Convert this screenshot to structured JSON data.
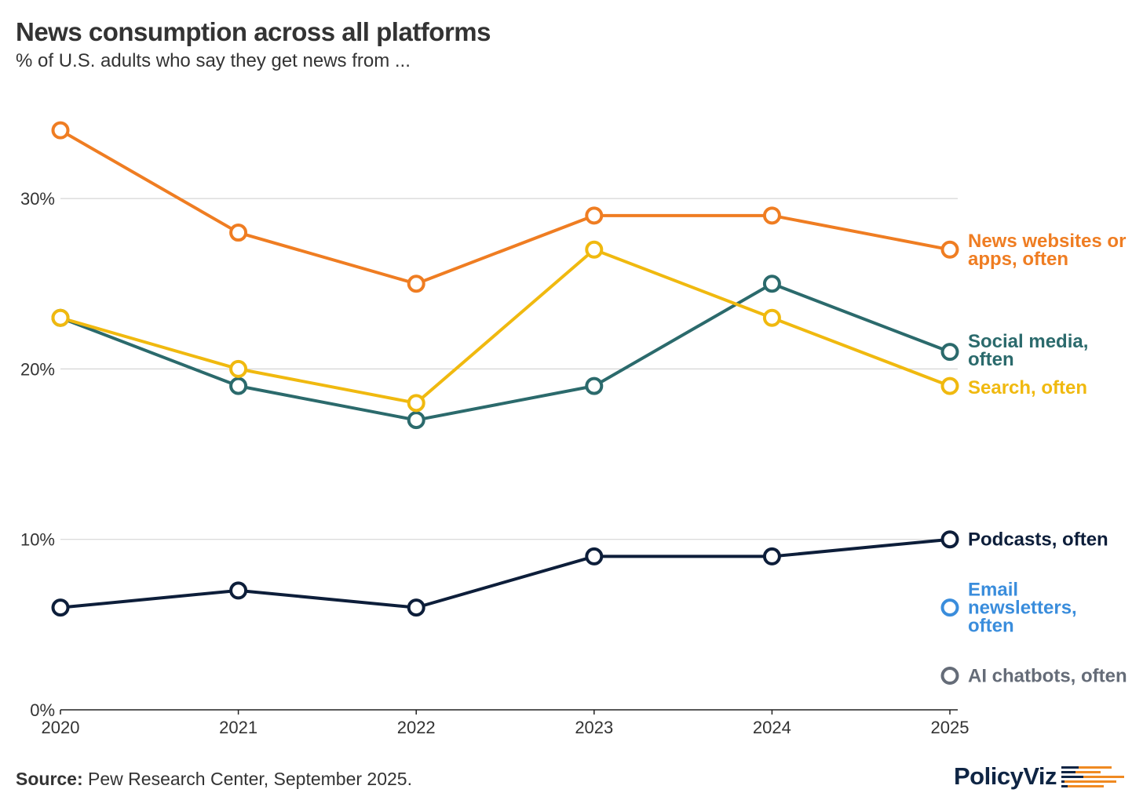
{
  "title": "News consumption across all platforms",
  "subtitle": "% of U.S. adults who say they get news from ...",
  "source_label": "Source:",
  "source_text": " Pew Research Center, September 2025.",
  "logo_text": "PolicyViz",
  "chart_data": {
    "type": "line",
    "title": "News consumption across all platforms",
    "subtitle": "% of U.S. adults who say they get news from ...",
    "x": [
      2020,
      2021,
      2022,
      2023,
      2024,
      2025
    ],
    "x_tick_labels": [
      "2020",
      "2021",
      "2022",
      "2023",
      "2024",
      "2025"
    ],
    "y_ticks": [
      0,
      10,
      20,
      30
    ],
    "y_tick_labels": [
      "0%",
      "10%",
      "20%",
      "30%"
    ],
    "ylim": [
      0,
      34
    ],
    "grid": true,
    "legend": "direct-labels-right",
    "series": [
      {
        "name": "News websites or apps, often",
        "label_lines": [
          "News websites or",
          "apps, often"
        ],
        "color": "#ef7d22",
        "values": [
          34,
          28,
          25,
          29,
          29,
          27
        ]
      },
      {
        "name": "Search, often",
        "label_lines": [
          "Search, often"
        ],
        "color": "#f0b90f",
        "values": [
          23,
          20,
          18,
          27,
          23,
          19
        ]
      },
      {
        "name": "Social media, often",
        "label_lines": [
          "Social media,",
          "often"
        ],
        "color": "#2b6a6c",
        "values": [
          23,
          19,
          17,
          19,
          25,
          21
        ]
      },
      {
        "name": "Podcasts, often",
        "label_lines": [
          "Podcasts, often"
        ],
        "color": "#0d1e3a",
        "values": [
          6,
          7,
          6,
          9,
          9,
          10
        ]
      },
      {
        "name": "Email newsletters, often",
        "label_lines": [
          "Email",
          "newsletters,",
          "often"
        ],
        "color": "#3a8ddc",
        "values": [
          null,
          null,
          null,
          null,
          null,
          6
        ]
      },
      {
        "name": "AI chatbots, often",
        "label_lines": [
          "AI chatbots, often"
        ],
        "color": "#656c78",
        "values": [
          null,
          null,
          null,
          null,
          null,
          2
        ]
      }
    ]
  }
}
